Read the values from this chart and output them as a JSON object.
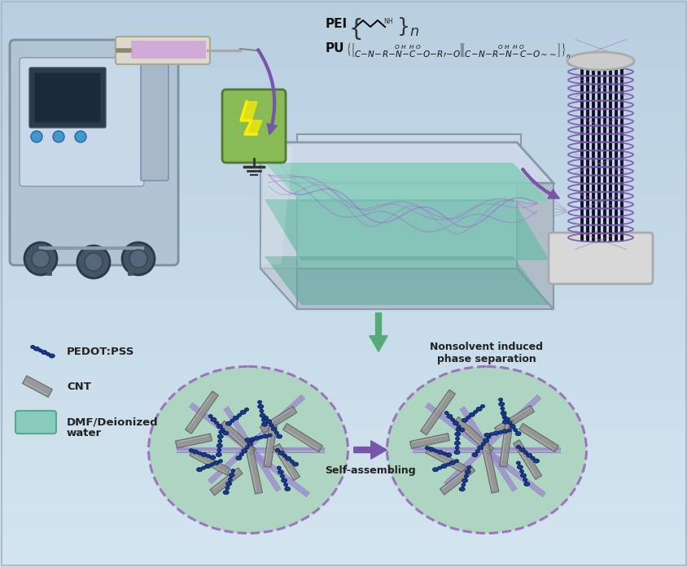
{
  "bg_color": "#c8daea",
  "legend_items": [
    "PEDOT:PSS",
    "CNT",
    "DMF/Deionized\nwater"
  ],
  "label_nonsolvent": "Nonsolvent induced\nphase separation",
  "label_selfassembling": "Self-assembling",
  "arrow_color_purple": "#7755aa",
  "arrow_color_green": "#55aa77",
  "circle_fill": "#aad4bc",
  "circle_border": "#9966bb",
  "pedot_color": "#1a3a8a",
  "cnt_color": "#888888"
}
